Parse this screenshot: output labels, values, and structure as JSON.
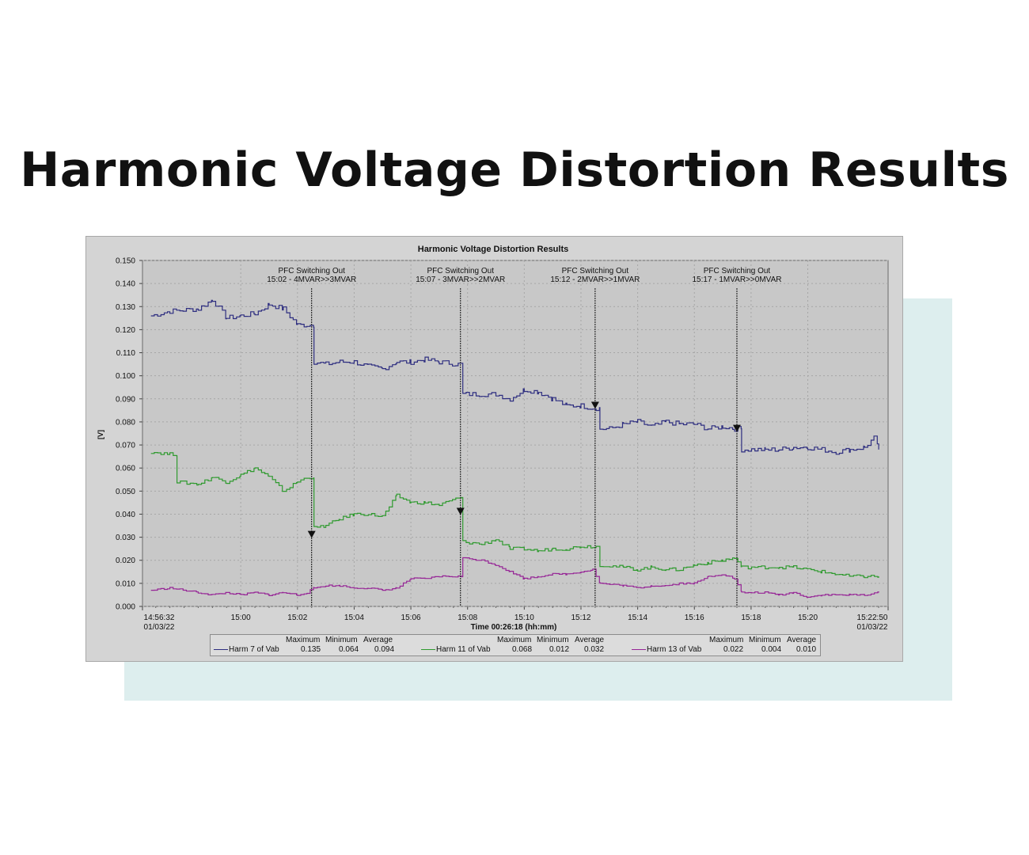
{
  "slide": {
    "title": "Harmonic Voltage Distortion Results"
  },
  "colors": {
    "series_7": "#2e2e80",
    "series_11": "#2f9a2f",
    "series_13": "#962596",
    "plot_bg": "#c8c8c8",
    "accent_panel": "#ddeeee"
  },
  "chart_data": {
    "type": "line",
    "title": "Harmonic Voltage Distortion Results",
    "ylabel": "[V]",
    "xlabel": "Time 00:26:18 (hh:mm)",
    "ylim": [
      0,
      0.15
    ],
    "xlim": [
      "14:56:32",
      "15:22:50"
    ],
    "yticks": [
      "0.000",
      "0.010",
      "0.020",
      "0.030",
      "0.040",
      "0.050",
      "0.060",
      "0.070",
      "0.080",
      "0.090",
      "0.100",
      "0.110",
      "0.120",
      "0.130",
      "0.140",
      "0.150"
    ],
    "xticks": [
      "15:00",
      "15:02",
      "15:04",
      "15:06",
      "15:08",
      "15:10",
      "15:12",
      "15:14",
      "15:16",
      "15:18",
      "15:20"
    ],
    "x_start": {
      "time": "14:56:32",
      "date": "01/03/22"
    },
    "x_end": {
      "time": "15:22:50",
      "date": "01/03/22"
    },
    "grid": true,
    "legend_position": "bottom",
    "legend_headers": [
      "Maximum",
      "Minimum",
      "Average"
    ],
    "annotations": [
      {
        "time": "15:02:30",
        "line1": "PFC Switching Out",
        "line2": "15:02 - 4MVAR>>3MVAR",
        "arrow_value": 0.031
      },
      {
        "time": "15:07:45",
        "line1": "PFC Switching Out",
        "line2": "15:07 - 3MVAR>>2MVAR",
        "arrow_value": 0.041
      },
      {
        "time": "15:12:30",
        "line1": "PFC Switching Out",
        "line2": "15:12 - 2MVAR>>1MVAR",
        "arrow_value": 0.087
      },
      {
        "time": "15:17:30",
        "line1": "PFC Switching Out",
        "line2": "15:17 - 1MVAR>>0MVAR",
        "arrow_value": 0.077
      }
    ],
    "series": [
      {
        "name": "Harm 7 of Vab",
        "maximum": "0.135",
        "minimum": "0.064",
        "average": "0.094",
        "x": [
          "14:56:50",
          "14:57:30",
          "14:58:30",
          "14:59:00",
          "14:59:30",
          "15:00:00",
          "15:00:30",
          "15:01:00",
          "15:01:30",
          "15:02:00",
          "15:02:20",
          "15:02:35",
          "15:03:00",
          "15:03:30",
          "15:04:00",
          "15:04:30",
          "15:05:00",
          "15:05:30",
          "15:06:00",
          "15:06:30",
          "15:07:00",
          "15:07:40",
          "15:07:50",
          "15:08:30",
          "15:09:00",
          "15:09:30",
          "15:10:00",
          "15:10:30",
          "15:11:00",
          "15:11:30",
          "15:12:00",
          "15:12:25",
          "15:12:40",
          "15:13:00",
          "15:13:30",
          "15:14:00",
          "15:14:30",
          "15:15:00",
          "15:15:30",
          "15:16:00",
          "15:16:30",
          "15:17:00",
          "15:17:25",
          "15:17:40",
          "15:18:30",
          "15:19:00",
          "15:19:30",
          "15:20:00",
          "15:20:30",
          "15:21:00",
          "15:21:30",
          "15:22:00",
          "15:22:20",
          "15:22:30"
        ],
        "y": [
          0.126,
          0.128,
          0.129,
          0.133,
          0.125,
          0.126,
          0.127,
          0.131,
          0.129,
          0.122,
          0.122,
          0.106,
          0.105,
          0.106,
          0.106,
          0.104,
          0.103,
          0.106,
          0.106,
          0.107,
          0.106,
          0.105,
          0.092,
          0.092,
          0.092,
          0.09,
          0.094,
          0.093,
          0.09,
          0.087,
          0.087,
          0.086,
          0.077,
          0.077,
          0.079,
          0.08,
          0.078,
          0.08,
          0.079,
          0.079,
          0.077,
          0.078,
          0.077,
          0.068,
          0.068,
          0.068,
          0.069,
          0.069,
          0.068,
          0.067,
          0.068,
          0.069,
          0.073,
          0.068
        ]
      },
      {
        "name": "Harm 11 of Vab",
        "maximum": "0.068",
        "minimum": "0.012",
        "average": "0.032",
        "x": [
          "14:56:50",
          "14:57:30",
          "14:57:45",
          "14:58:30",
          "14:59:00",
          "14:59:30",
          "15:00:00",
          "15:00:30",
          "15:01:00",
          "15:01:30",
          "15:02:00",
          "15:02:20",
          "15:02:35",
          "15:03:00",
          "15:03:30",
          "15:04:00",
          "15:04:30",
          "15:05:00",
          "15:05:30",
          "15:06:00",
          "15:06:30",
          "15:07:00",
          "15:07:40",
          "15:07:50",
          "15:08:30",
          "15:09:00",
          "15:09:30",
          "15:10:00",
          "15:10:30",
          "15:11:00",
          "15:11:30",
          "15:12:00",
          "15:12:25",
          "15:12:40",
          "15:13:30",
          "15:14:00",
          "15:14:30",
          "15:15:00",
          "15:15:30",
          "15:16:00",
          "15:16:30",
          "15:17:00",
          "15:17:25",
          "15:17:40",
          "15:18:30",
          "15:19:00",
          "15:19:30",
          "15:20:00",
          "15:20:30",
          "15:21:00",
          "15:21:30",
          "15:22:00",
          "15:22:30"
        ],
        "y": [
          0.067,
          0.066,
          0.054,
          0.053,
          0.056,
          0.054,
          0.057,
          0.06,
          0.056,
          0.05,
          0.054,
          0.056,
          0.034,
          0.035,
          0.038,
          0.04,
          0.04,
          0.039,
          0.048,
          0.045,
          0.045,
          0.044,
          0.047,
          0.028,
          0.027,
          0.029,
          0.025,
          0.025,
          0.024,
          0.025,
          0.025,
          0.026,
          0.026,
          0.018,
          0.017,
          0.016,
          0.017,
          0.016,
          0.016,
          0.018,
          0.019,
          0.02,
          0.021,
          0.017,
          0.017,
          0.017,
          0.017,
          0.016,
          0.015,
          0.014,
          0.013,
          0.013,
          0.013
        ]
      },
      {
        "name": "Harm 13 of Vab",
        "maximum": "0.022",
        "minimum": "0.004",
        "average": "0.010",
        "x": [
          "14:56:50",
          "14:57:30",
          "14:58:30",
          "14:59:00",
          "14:59:30",
          "15:00:00",
          "15:00:30",
          "15:01:00",
          "15:01:30",
          "15:02:00",
          "15:02:20",
          "15:02:35",
          "15:03:00",
          "15:03:30",
          "15:04:00",
          "15:04:30",
          "15:05:00",
          "15:05:30",
          "15:06:00",
          "15:06:30",
          "15:07:00",
          "15:07:40",
          "15:07:50",
          "15:08:30",
          "15:09:00",
          "15:09:30",
          "15:10:00",
          "15:10:30",
          "15:11:00",
          "15:11:30",
          "15:12:00",
          "15:12:25",
          "15:12:40",
          "15:13:30",
          "15:14:00",
          "15:14:30",
          "15:15:00",
          "15:15:30",
          "15:16:00",
          "15:16:30",
          "15:17:00",
          "15:17:25",
          "15:17:40",
          "15:18:30",
          "15:19:00",
          "15:19:30",
          "15:20:00",
          "15:20:30",
          "15:21:00",
          "15:21:30",
          "15:22:00",
          "15:22:30"
        ],
        "y": [
          0.007,
          0.008,
          0.006,
          0.005,
          0.006,
          0.005,
          0.006,
          0.005,
          0.006,
          0.005,
          0.006,
          0.008,
          0.009,
          0.009,
          0.008,
          0.008,
          0.007,
          0.008,
          0.012,
          0.012,
          0.013,
          0.013,
          0.021,
          0.02,
          0.018,
          0.015,
          0.012,
          0.013,
          0.014,
          0.014,
          0.015,
          0.016,
          0.01,
          0.009,
          0.008,
          0.009,
          0.009,
          0.01,
          0.01,
          0.013,
          0.014,
          0.012,
          0.006,
          0.006,
          0.005,
          0.006,
          0.004,
          0.005,
          0.005,
          0.005,
          0.005,
          0.006
        ]
      }
    ]
  }
}
